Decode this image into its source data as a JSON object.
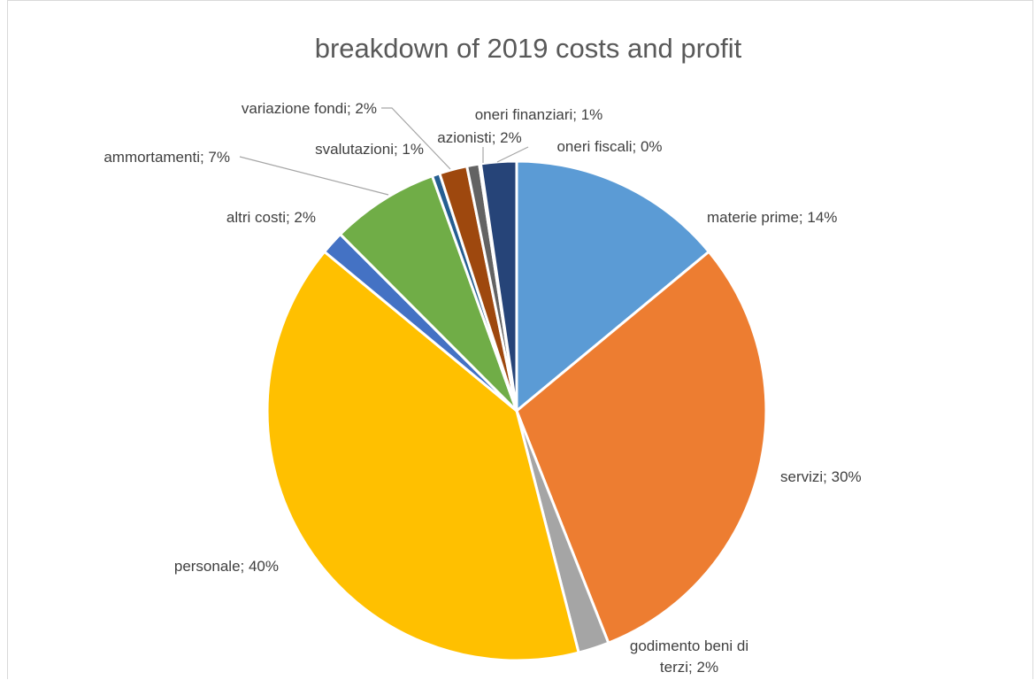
{
  "chart_data": {
    "type": "pie",
    "title": "breakdown of 2019 costs and profit",
    "start_angle_deg": 0,
    "direction": "clockwise",
    "slices": [
      {
        "name": "materie prime",
        "value": 14,
        "label": "materie prime; 14%",
        "color": "#5B9BD5"
      },
      {
        "name": "servizi",
        "value": 30,
        "label": "servizi; 30%",
        "color": "#ED7D31"
      },
      {
        "name": "godimento beni di terzi",
        "value": 2,
        "label_lines": [
          "godimento beni di",
          "terzi; 2%"
        ],
        "color": "#A5A5A5"
      },
      {
        "name": "personale",
        "value": 40,
        "label": "personale; 40%",
        "color": "#FFC000"
      },
      {
        "name": "altri costi",
        "value": 1.5,
        "label": "altri costi; 2%",
        "color": "#4472C4"
      },
      {
        "name": "ammortamenti",
        "value": 7,
        "label": "ammortamenti; 7%",
        "color": "#70AD47"
      },
      {
        "name": "svalutazioni",
        "value": 0.5,
        "label": "svalutazioni; 1%",
        "color": "#255E91"
      },
      {
        "name": "variazione fondi",
        "value": 1.8,
        "label": "variazione fondi; 2%",
        "color": "#9E480E"
      },
      {
        "name": "oneri finanziari",
        "value": 0.8,
        "label": "oneri finanziari; 1%",
        "color": "#636363"
      },
      {
        "name": "oneri fiscali",
        "value": 0.1,
        "label": "oneri fiscali; 0%",
        "color": "#997300"
      },
      {
        "name": "azionisti",
        "value": 2.3,
        "label": "azionisti; 2%",
        "color": "#264478"
      }
    ]
  }
}
